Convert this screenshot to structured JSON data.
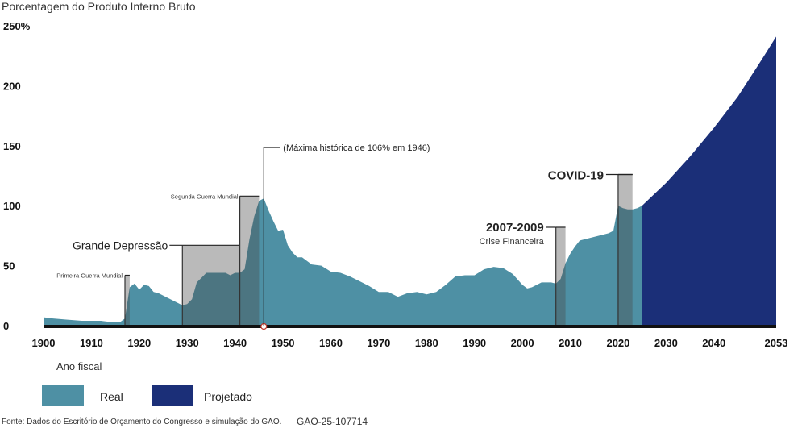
{
  "chart_data": {
    "type": "area",
    "ylabel": "Porcentagem do Produto Interno Bruto",
    "xlabel": "Ano fiscal",
    "ylim": [
      0,
      250
    ],
    "xlim": [
      1900,
      2053
    ],
    "y_ticks": [
      "250%",
      "200",
      "150",
      "100",
      "50",
      "0"
    ],
    "y_tick_values": [
      250,
      200,
      150,
      100,
      50,
      0
    ],
    "x_ticks": [
      "1900",
      "1910",
      "1920",
      "1930",
      "1940",
      "1950",
      "1960",
      "1970",
      "1980",
      "1990",
      "2000",
      "2010",
      "2020",
      "2030",
      "2040",
      "2053"
    ],
    "x_tick_values": [
      1900,
      1910,
      1920,
      1930,
      1940,
      1950,
      1960,
      1970,
      1980,
      1990,
      2000,
      2010,
      2020,
      2030,
      2040,
      2053
    ],
    "series": [
      {
        "name": "Real",
        "color": "#4e90a4",
        "x": [
          1900,
          1902,
          1905,
          1908,
          1910,
          1912,
          1914,
          1916,
          1917,
          1918,
          1919,
          1920,
          1921,
          1922,
          1923,
          1924,
          1926,
          1928,
          1929,
          1930,
          1931,
          1932,
          1933,
          1934,
          1936,
          1938,
          1939,
          1940,
          1941,
          1942,
          1943,
          1944,
          1945,
          1946,
          1947,
          1948,
          1949,
          1950,
          1951,
          1952,
          1953,
          1954,
          1956,
          1958,
          1960,
          1962,
          1964,
          1966,
          1968,
          1970,
          1972,
          1974,
          1976,
          1978,
          1980,
          1982,
          1984,
          1986,
          1988,
          1990,
          1992,
          1994,
          1996,
          1998,
          2000,
          2001,
          2002,
          2004,
          2006,
          2007,
          2008,
          2009,
          2010,
          2011,
          2012,
          2014,
          2016,
          2018,
          2019,
          2020,
          2021,
          2022,
          2023,
          2024,
          2025
        ],
        "values": [
          7,
          6,
          5,
          4,
          4,
          4,
          3,
          3,
          6,
          32,
          35,
          30,
          34,
          33,
          28,
          27,
          23,
          19,
          17,
          18,
          22,
          36,
          40,
          44,
          44,
          44,
          42,
          44,
          44,
          47,
          72,
          91,
          104,
          106,
          96,
          87,
          79,
          80,
          67,
          61,
          57,
          57,
          51,
          50,
          45,
          44,
          41,
          37,
          33,
          28,
          28,
          24,
          27,
          28,
          26,
          28,
          34,
          41,
          42,
          42,
          47,
          49,
          48,
          43,
          34,
          31,
          32,
          36,
          36,
          35,
          39,
          52,
          60,
          66,
          71,
          73,
          75,
          77,
          79,
          100,
          98,
          97,
          97,
          98,
          100
        ]
      },
      {
        "name": "Projetado",
        "color": "#1b2f78",
        "x": [
          2025,
          2030,
          2035,
          2040,
          2045,
          2050,
          2053
        ],
        "values": [
          100,
          119,
          141,
          165,
          191,
          222,
          241
        ]
      }
    ],
    "annotations": [
      {
        "label": "Primeira Guerra Mundial",
        "x_start": 1917,
        "x_end": 1918,
        "top": 42
      },
      {
        "label": "Grande Depressão",
        "x_start": 1929,
        "x_end": 1941,
        "top": 67
      },
      {
        "label": "Segunda Guerra Mundial",
        "x_start": 1941,
        "x_end": 1945,
        "top": 108
      },
      {
        "label": "(Máxima histórica de 106% em 1946)",
        "x": 1946,
        "y": 106
      },
      {
        "label": "2007-2009",
        "sublabel": "Crise Financeira",
        "x_start": 2007,
        "x_end": 2009,
        "top": 82
      },
      {
        "label": "COVID-19",
        "x_start": 2020,
        "x_end": 2023,
        "top": 126
      }
    ]
  },
  "legend": {
    "title": "Ano fiscal",
    "items": [
      {
        "label": "Real",
        "color": "#4e90a4"
      },
      {
        "label": "Projetado",
        "color": "#1b2f78"
      }
    ]
  },
  "source": "Fonte: Dados do Escritório de Orçamento do Congresso e simulação do GAO. |",
  "source_id": "GAO-25-107714"
}
